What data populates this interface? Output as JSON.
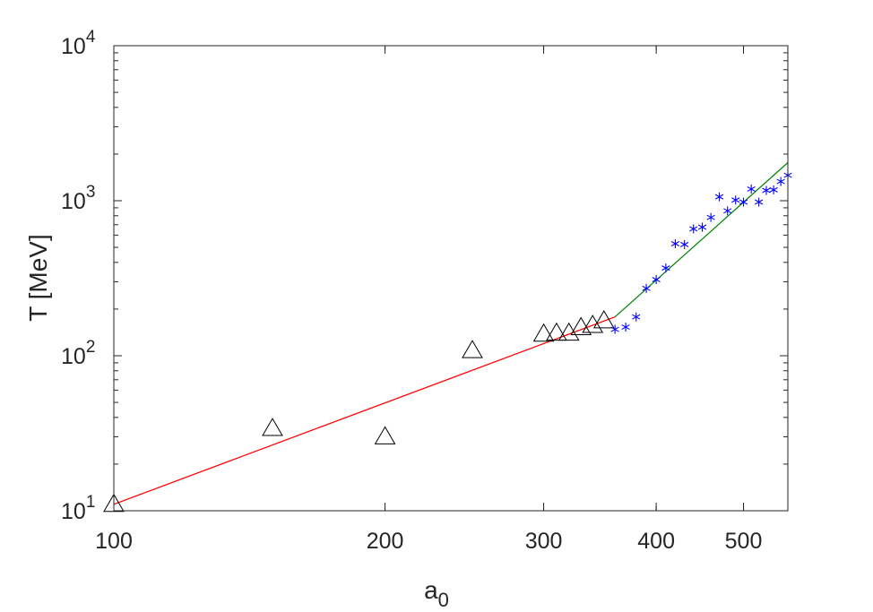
{
  "chart_data": {
    "type": "scatter",
    "xlabel": "a",
    "xlabel_sub": "0",
    "ylabel": "T [MeV]",
    "x_scale": "log",
    "y_scale": "log",
    "xlim": [
      100,
      560
    ],
    "ylim": [
      10,
      10000
    ],
    "x_ticks": [
      {
        "value": 100,
        "label": "100"
      },
      {
        "value": 200,
        "label": "200"
      },
      {
        "value": 300,
        "label": "300"
      },
      {
        "value": 400,
        "label": "400"
      },
      {
        "value": 500,
        "label": "500"
      }
    ],
    "y_ticks": [
      {
        "value": 10,
        "base": "10",
        "exp": "1"
      },
      {
        "value": 100,
        "base": "10",
        "exp": "2"
      },
      {
        "value": 1000,
        "base": "10",
        "exp": "3"
      },
      {
        "value": 10000,
        "base": "10",
        "exp": "4"
      }
    ],
    "grid": false,
    "box": true,
    "series": [
      {
        "marker": "triangle",
        "color": "#000000",
        "points": [
          [
            100,
            11
          ],
          [
            150,
            34
          ],
          [
            200,
            30
          ],
          [
            250,
            108
          ],
          [
            300,
            138
          ],
          [
            310,
            140
          ],
          [
            320,
            140
          ],
          [
            330,
            152
          ],
          [
            340,
            157
          ],
          [
            350,
            168
          ]
        ]
      },
      {
        "marker": "asterisk",
        "color": "#0000ff",
        "points": [
          [
            360,
            148
          ],
          [
            370,
            153
          ],
          [
            380,
            178
          ],
          [
            390,
            272
          ],
          [
            400,
            310
          ],
          [
            410,
            368
          ],
          [
            420,
            528
          ],
          [
            430,
            522
          ],
          [
            440,
            658
          ],
          [
            450,
            675
          ],
          [
            460,
            780
          ],
          [
            470,
            1060
          ],
          [
            480,
            860
          ],
          [
            490,
            1010
          ],
          [
            500,
            980
          ],
          [
            510,
            1190
          ],
          [
            520,
            980
          ],
          [
            530,
            1165
          ],
          [
            540,
            1175
          ],
          [
            550,
            1330
          ],
          [
            560,
            1460
          ]
        ]
      }
    ],
    "fits": [
      {
        "color": "#ff0000",
        "points": [
          [
            100,
            11
          ],
          [
            360,
            178
          ]
        ]
      },
      {
        "color": "#008000",
        "points": [
          [
            360,
            178
          ],
          [
            560,
            1760
          ]
        ]
      }
    ]
  }
}
